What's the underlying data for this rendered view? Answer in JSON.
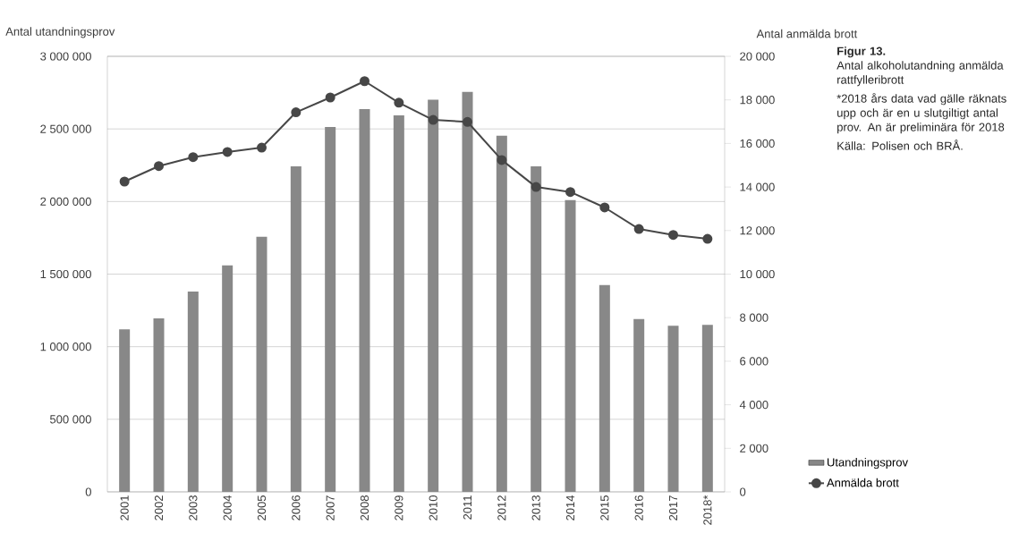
{
  "chart_data": {
    "type": "bar",
    "title": "Figur 13.",
    "subtitle": "Antal alkoholutandning anmälda rattfylleribrott",
    "annotations": [
      "*2018 års data vad gälle räknats upp och är en u slutgiltigt antal prov. An är preliminära för 2018",
      "Källa: Polisen och BRÅ."
    ],
    "ylabel": "Antal utandningsprov",
    "y2label": "Antal anmälda brott",
    "categories": [
      "2001",
      "2002",
      "2003",
      "2004",
      "2005",
      "2006",
      "2007",
      "2008",
      "2009",
      "2010",
      "2011",
      "2012",
      "2013",
      "2014",
      "2015",
      "2016",
      "2017",
      "2018*"
    ],
    "series": [
      {
        "name": "Utandningsprov",
        "color": "#888888",
        "values": [
          1120000,
          1195000,
          1380000,
          1560000,
          1757000,
          2243000,
          2514000,
          2637000,
          2594000,
          2701000,
          2757000,
          2453000,
          2243000,
          2009000,
          1424000,
          1190000,
          1144000,
          1150000
        ]
      },
      {
        "name": "Anmälda brott",
        "type": "line",
        "axis": "y2",
        "color": "#474747",
        "marker": "circle",
        "line_style": "solid",
        "values": [
          14250,
          14960,
          15370,
          15610,
          15810,
          17430,
          18110,
          18860,
          17870,
          17080,
          16990,
          15240,
          14000,
          13770,
          13060,
          12070,
          11800,
          11620
        ]
      }
    ],
    "ylim": [
      0,
      3000000
    ],
    "yticks": [
      0,
      {
        "value": 500000,
        "label": "500 000"
      },
      {
        "value": 1000000,
        "label": "1 000 000"
      },
      {
        "value": 1500000,
        "label": "1 500 000"
      },
      {
        "value": 2000000,
        "label": "2 000 000"
      },
      {
        "value": 2500000,
        "label": "2 500 000"
      },
      {
        "value": 3000000,
        "label": "3 000 000"
      }
    ],
    "y2lim": [
      0,
      20000
    ],
    "y2ticks": [
      0,
      {
        "value": 2000,
        "label": "2 000"
      },
      {
        "value": 4000,
        "label": "4 000"
      },
      {
        "value": 6000,
        "label": "6 000"
      },
      {
        "value": 8000,
        "label": "8 000"
      },
      {
        "value": 10000,
        "label": "10 000"
      },
      {
        "value": 12000,
        "label": "12 000"
      },
      {
        "value": 14000,
        "label": "14 000"
      },
      {
        "value": 16000,
        "label": "16 000"
      },
      {
        "value": 18000,
        "label": "18 000"
      },
      {
        "value": 20000,
        "label": "20 000"
      }
    ],
    "grid": "y",
    "legend": "bottom right"
  }
}
